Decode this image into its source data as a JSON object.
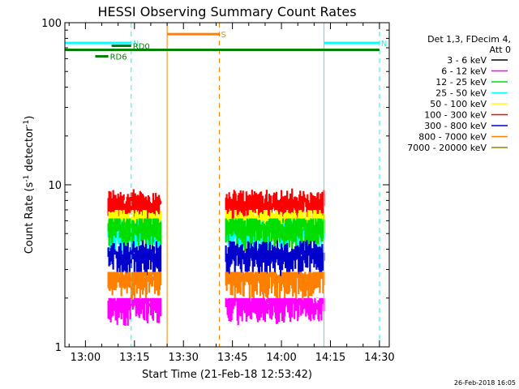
{
  "chart_data": {
    "type": "line",
    "title": "HESSI Observing Summary Count Rates",
    "xlabel": "Start Time (21-Feb-18 12:53:42)",
    "ylabel": "Count Rate (s",
    "ylabel_sup": "-1",
    "ylabel_tail": " detector",
    "ylabel_end": ")",
    "y_scale": "log",
    "ylim": [
      1,
      100
    ],
    "x_range_minutes": [
      "12:53:42",
      "14:33:00"
    ],
    "y_ticks": [
      "1",
      "10",
      "100"
    ],
    "x_ticks": [
      "13:00",
      "13:15",
      "13:30",
      "13:45",
      "14:00",
      "14:15",
      "14:30"
    ],
    "x_tick_minutes": [
      780,
      795,
      810,
      825,
      840,
      855,
      870
    ],
    "legend": {
      "position": "right",
      "header": [
        "Det 1,3, FDecim 4,",
        "Att 0"
      ],
      "entries": [
        {
          "label": "3 - 6 keV",
          "color": "#000000"
        },
        {
          "label": "6 - 12 keV",
          "color": "#ff00ff"
        },
        {
          "label": "12 - 25 keV",
          "color": "#00dd00"
        },
        {
          "label": "25 - 50 keV",
          "color": "#00ffff"
        },
        {
          "label": "50 - 100 keV",
          "color": "#ffff00"
        },
        {
          "label": "100 - 300 keV",
          "color": "#ff0000"
        },
        {
          "label": "300 - 800 keV",
          "color": "#0000cc"
        },
        {
          "label": "800 - 7000 keV",
          "color": "#ff8000"
        },
        {
          "label": "7000 - 20000 keV",
          "color": "#888800"
        }
      ]
    },
    "series": [
      {
        "name": "100 - 300 keV",
        "color": "#ff0000",
        "typical": 7.7,
        "peak": 10.5
      },
      {
        "name": "50 - 100 keV",
        "color": "#ffff00",
        "typical": 6.0,
        "peak": 7.0
      },
      {
        "name": "25 - 50 keV",
        "color": "#00ffff",
        "typical": 5.2,
        "peak": 6.0
      },
      {
        "name": "12 - 25 keV",
        "color": "#00dd00",
        "typical": 5.5,
        "peak": 6.2
      },
      {
        "name": "300 - 800 keV",
        "color": "#0000cc",
        "typical": 3.7,
        "peak": 4.8
      },
      {
        "name": "800 - 7000 keV",
        "color": "#ff8000",
        "typical": 2.7,
        "peak": 2.9
      },
      {
        "name": "6 - 12 keV",
        "color": "#ff00ff",
        "typical": 1.9,
        "peak": 2.0
      }
    ],
    "data_intervals": [
      {
        "start": "13:07",
        "end": "13:23"
      },
      {
        "start": "13:43",
        "end": "14:13"
      }
    ],
    "event_bars": [
      {
        "label": "N",
        "color": "#00ffff",
        "start": "12:53:42",
        "end": "13:14",
        "level": 75
      },
      {
        "label": "N",
        "color": "#00ffff",
        "start": "14:13",
        "end": "14:30",
        "level": 75
      },
      {
        "label": "S",
        "color": "#ff8000",
        "start": "13:25",
        "end": "13:41",
        "level": 85
      },
      {
        "label": "",
        "color": "#008000",
        "start": "12:53:42",
        "end": "14:30",
        "level": 68
      },
      {
        "label": "RD0",
        "color": "#008000",
        "start": "13:08",
        "end": "13:14",
        "level": 72
      },
      {
        "label": "RD6",
        "color": "#008000",
        "start": "13:03",
        "end": "13:07",
        "level": 62
      }
    ],
    "vertical_markers": [
      {
        "time": "12:53:42",
        "color": "#00ffff",
        "style": "solid"
      },
      {
        "time": "13:14",
        "color": "#00ffff",
        "style": "dashed"
      },
      {
        "time": "13:25",
        "color": "#ff8000",
        "style": "solid"
      },
      {
        "time": "13:41",
        "color": "#ff8000",
        "style": "dashed"
      },
      {
        "time": "14:13",
        "color": "#00ffff",
        "style": "solid"
      },
      {
        "time": "14:30",
        "color": "#00ffff",
        "style": "dashed"
      }
    ],
    "footer": "26-Feb-2018 16:05"
  }
}
